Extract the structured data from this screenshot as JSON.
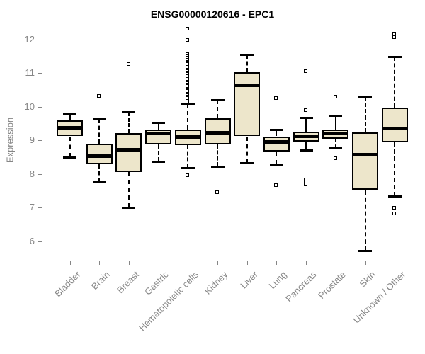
{
  "chart_data": {
    "type": "boxplot",
    "title": "ENSG00000120616 - EPC1",
    "ylabel": "Expression",
    "ylim": [
      5.6,
      12.4
    ],
    "yticks": [
      6,
      7,
      8,
      9,
      10,
      11,
      12
    ],
    "grid": false,
    "legend": null,
    "box_fill": "#ede6cb",
    "axis_color": "#868686",
    "box_border_color": "#000000",
    "categories": [
      "Bladder",
      "Brain",
      "Breast",
      "Gastric",
      "Hematopoietic cells",
      "Kidney",
      "Liver",
      "Lung",
      "Pancreas",
      "Prostate",
      "Skin",
      "Unknown / Other"
    ],
    "boxes": [
      {
        "category": "Bladder",
        "whisker_low": 8.5,
        "q1": 9.12,
        "median": 9.37,
        "q3": 9.6,
        "whisker_high": 9.79,
        "outliers": []
      },
      {
        "category": "Brain",
        "whisker_low": 7.76,
        "q1": 8.29,
        "median": 8.54,
        "q3": 8.9,
        "whisker_high": 9.64,
        "outliers": [
          10.3
        ]
      },
      {
        "category": "Breast",
        "whisker_low": 7.0,
        "q1": 8.06,
        "median": 8.72,
        "q3": 9.21,
        "whisker_high": 9.84,
        "outliers": [
          11.25
        ]
      },
      {
        "category": "Gastric",
        "whisker_low": 8.38,
        "q1": 8.88,
        "median": 9.2,
        "q3": 9.32,
        "whisker_high": 9.53,
        "outliers": []
      },
      {
        "category": "Hematopoietic cells",
        "whisker_low": 8.19,
        "q1": 8.86,
        "median": 9.1,
        "q3": 9.33,
        "whisker_high": 10.07,
        "outliers": [
          12.3,
          11.98,
          11.55,
          11.5,
          11.45,
          11.38,
          11.33,
          11.29,
          11.25,
          11.21,
          11.17,
          11.13,
          11.09,
          11.05,
          11.01,
          10.97,
          10.93,
          10.89,
          10.85,
          10.81,
          10.77,
          10.73,
          10.69,
          10.65,
          10.61,
          10.57,
          10.53,
          10.49,
          10.45,
          10.41,
          10.37,
          10.33,
          10.29,
          10.25,
          10.21,
          10.17,
          10.13,
          7.95
        ]
      },
      {
        "category": "Kidney",
        "whisker_low": 8.22,
        "q1": 8.88,
        "median": 9.22,
        "q3": 9.65,
        "whisker_high": 10.21,
        "outliers": [
          7.45
        ]
      },
      {
        "category": "Liver",
        "whisker_low": 8.34,
        "q1": 9.12,
        "median": 10.63,
        "q3": 11.03,
        "whisker_high": 11.56,
        "outliers": []
      },
      {
        "category": "Lung",
        "whisker_low": 8.28,
        "q1": 8.67,
        "median": 8.96,
        "q3": 9.12,
        "whisker_high": 9.31,
        "outliers": [
          10.25,
          7.65
        ]
      },
      {
        "category": "Pancreas",
        "whisker_low": 8.72,
        "q1": 8.96,
        "median": 9.13,
        "q3": 9.26,
        "whisker_high": 9.68,
        "outliers": [
          11.05,
          9.88,
          7.82,
          7.75,
          7.68
        ]
      },
      {
        "category": "Prostate",
        "whisker_low": 8.77,
        "q1": 9.05,
        "median": 9.2,
        "q3": 9.32,
        "whisker_high": 9.75,
        "outliers": [
          10.28,
          8.45
        ]
      },
      {
        "category": "Skin",
        "whisker_low": 5.72,
        "q1": 7.52,
        "median": 8.57,
        "q3": 9.24,
        "whisker_high": 10.32,
        "outliers": []
      },
      {
        "category": "Unknown / Other",
        "whisker_low": 7.35,
        "q1": 8.94,
        "median": 9.36,
        "q3": 9.97,
        "whisker_high": 11.48,
        "outliers": [
          12.16,
          12.06,
          6.98,
          6.82
        ]
      }
    ]
  }
}
